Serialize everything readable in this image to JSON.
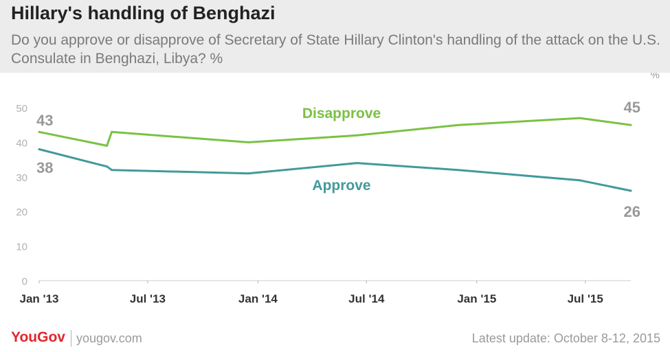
{
  "header": {
    "title": "Hillary's handling of Benghazi",
    "subtitle": "Do you approve or disapprove of Secretary of State Hillary Clinton's handling of the attack on the U.S. Consulate in Benghazi, Libya? %"
  },
  "chart_data": {
    "type": "line",
    "unit_label": "%",
    "ylim": [
      0,
      50
    ],
    "yticks": [
      0,
      10,
      20,
      30,
      40,
      50
    ],
    "xlim": [
      "2013-01-01",
      "2015-09-15"
    ],
    "xticks": [
      {
        "date": "2013-01-01",
        "label": "Jan '13"
      },
      {
        "date": "2013-07-01",
        "label": "Jul '13"
      },
      {
        "date": "2014-01-01",
        "label": "Jan '14"
      },
      {
        "date": "2014-07-01",
        "label": "Jul '14"
      },
      {
        "date": "2015-01-01",
        "label": "Jan '15"
      },
      {
        "date": "2015-07-01",
        "label": "Jul '15"
      }
    ],
    "grid": false,
    "series": [
      {
        "name": "Disapprove",
        "color": "#7ac143",
        "points": [
          {
            "x": "2013-01-01",
            "y": 43
          },
          {
            "x": "2013-04-24",
            "y": 39
          },
          {
            "x": "2013-05-02",
            "y": 43
          },
          {
            "x": "2013-12-16",
            "y": 40
          },
          {
            "x": "2014-06-15",
            "y": 42
          },
          {
            "x": "2014-12-01",
            "y": 45
          },
          {
            "x": "2015-06-22",
            "y": 47
          },
          {
            "x": "2015-09-15",
            "y": 45
          }
        ],
        "start_label": "43",
        "end_label": "45"
      },
      {
        "name": "Approve",
        "color": "#42999b",
        "points": [
          {
            "x": "2013-01-01",
            "y": 38
          },
          {
            "x": "2013-04-24",
            "y": 33
          },
          {
            "x": "2013-05-02",
            "y": 32
          },
          {
            "x": "2013-12-16",
            "y": 31
          },
          {
            "x": "2014-06-15",
            "y": 34
          },
          {
            "x": "2014-12-01",
            "y": 32
          },
          {
            "x": "2015-06-22",
            "y": 29
          },
          {
            "x": "2015-09-15",
            "y": 26
          }
        ],
        "start_label": "38",
        "end_label": "26"
      }
    ]
  },
  "footer": {
    "brand": "YouGov",
    "brand_color": "#e3262c",
    "site": "yougov.com",
    "update": "Latest update: October 8-12, 2015"
  }
}
